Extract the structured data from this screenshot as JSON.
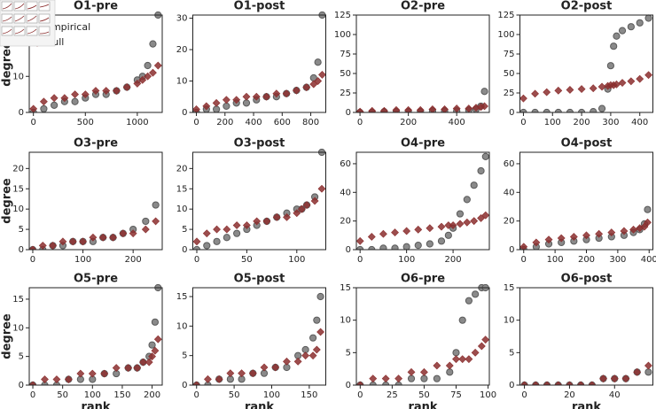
{
  "chart_data": [
    {
      "type": "scatter",
      "title": "O1-pre",
      "ylabel": "degree",
      "legend": "upper left",
      "x": [
        0,
        100,
        200,
        300,
        400,
        500,
        600,
        700,
        800,
        900,
        1000,
        1050,
        1100,
        1150,
        1200
      ],
      "series": [
        {
          "name": "Empirical",
          "color": "#5a5a5a",
          "values": [
            0,
            1,
            2,
            3,
            3,
            4,
            5,
            5,
            6,
            7,
            9,
            10,
            13,
            19,
            27
          ]
        },
        {
          "name": "Null",
          "color": "#8b2e2e",
          "values": [
            1,
            3,
            4,
            4,
            5,
            5,
            6,
            6,
            6,
            7,
            8,
            9,
            10,
            11,
            13
          ]
        }
      ],
      "xlim": [
        -40,
        1240
      ],
      "ylim": [
        0,
        27
      ],
      "xticks": [
        0,
        500,
        1000
      ],
      "yticks": [
        0,
        10,
        20
      ]
    },
    {
      "type": "scatter",
      "title": "O1-post",
      "x": [
        0,
        70,
        140,
        210,
        280,
        350,
        420,
        490,
        560,
        630,
        700,
        770,
        820,
        850,
        880
      ],
      "series": [
        {
          "name": "Empirical",
          "color": "#5a5a5a",
          "values": [
            0,
            1,
            1,
            2,
            3,
            3,
            4,
            5,
            5,
            6,
            7,
            8,
            11,
            16,
            31
          ]
        },
        {
          "name": "Null",
          "color": "#8b2e2e",
          "values": [
            1,
            2,
            3,
            4,
            4,
            5,
            5,
            5,
            6,
            6,
            7,
            8,
            9,
            10,
            12
          ]
        }
      ],
      "xlim": [
        -25,
        905
      ],
      "ylim": [
        0,
        31
      ],
      "xticks": [
        0,
        200,
        400,
        600,
        800
      ],
      "yticks": [
        0,
        10,
        20,
        30
      ]
    },
    {
      "type": "scatter",
      "title": "O2-pre",
      "x": [
        0,
        50,
        100,
        150,
        200,
        250,
        300,
        350,
        400,
        450,
        480,
        500,
        515
      ],
      "series": [
        {
          "name": "Empirical",
          "color": "#5a5a5a",
          "values": [
            0,
            0,
            1,
            1,
            1,
            1,
            2,
            2,
            2,
            3,
            4,
            8,
            27
          ]
        },
        {
          "name": "Null",
          "color": "#8b2e2e",
          "values": [
            1,
            2,
            2,
            3,
            3,
            3,
            4,
            4,
            5,
            5,
            6,
            7,
            8
          ]
        }
      ],
      "xlim": [
        -15,
        535
      ],
      "ylim": [
        0,
        125
      ],
      "xticks": [
        0,
        200,
        400
      ],
      "yticks": [
        0,
        25,
        50,
        75,
        100,
        125
      ]
    },
    {
      "type": "scatter",
      "title": "O2-post",
      "x": [
        0,
        40,
        80,
        120,
        160,
        200,
        240,
        270,
        290,
        300,
        310,
        320,
        340,
        370,
        400,
        430
      ],
      "series": [
        {
          "name": "Empirical",
          "color": "#5a5a5a",
          "values": [
            0,
            0,
            0,
            0,
            0,
            0,
            1,
            5,
            30,
            60,
            85,
            98,
            105,
            110,
            115,
            121
          ]
        },
        {
          "name": "Null",
          "color": "#8b2e2e",
          "values": [
            18,
            24,
            26,
            28,
            29,
            30,
            31,
            33,
            34,
            35,
            35,
            36,
            38,
            40,
            43,
            48
          ]
        }
      ],
      "xlim": [
        -12,
        445
      ],
      "ylim": [
        0,
        125
      ],
      "xticks": [
        0,
        100,
        200,
        300,
        400
      ],
      "yticks": [
        0,
        25,
        50,
        75,
        100,
        125
      ]
    },
    {
      "type": "scatter",
      "title": "O3-pre",
      "ylabel": "degree",
      "x": [
        0,
        20,
        40,
        60,
        80,
        100,
        120,
        140,
        160,
        180,
        200,
        225,
        245
      ],
      "series": [
        {
          "name": "Empirical",
          "color": "#5a5a5a",
          "values": [
            0,
            0,
            1,
            1,
            2,
            2,
            2,
            3,
            3,
            4,
            5,
            7,
            11
          ]
        },
        {
          "name": "Null",
          "color": "#8b2e2e",
          "values": [
            0,
            1,
            1,
            2,
            2,
            2,
            3,
            3,
            3,
            4,
            4,
            5,
            7
          ]
        }
      ],
      "xlim": [
        -7,
        258
      ],
      "ylim": [
        0,
        24
      ],
      "xticks": [
        0,
        100,
        200
      ],
      "yticks": [
        0,
        5,
        10,
        15,
        20
      ]
    },
    {
      "type": "scatter",
      "title": "O3-post",
      "x": [
        0,
        10,
        20,
        30,
        40,
        50,
        60,
        70,
        80,
        90,
        100,
        105,
        110,
        118,
        125
      ],
      "series": [
        {
          "name": "Empirical",
          "color": "#5a5a5a",
          "values": [
            0,
            1,
            2,
            3,
            4,
            5,
            6,
            7,
            8,
            9,
            10,
            10,
            11,
            13,
            24
          ]
        },
        {
          "name": "Null",
          "color": "#8b2e2e",
          "values": [
            2,
            4,
            5,
            5,
            6,
            6,
            7,
            7,
            8,
            8,
            9,
            10,
            11,
            12,
            15
          ]
        }
      ],
      "xlim": [
        -4,
        129
      ],
      "ylim": [
        0,
        24
      ],
      "xticks": [
        0,
        50,
        100
      ],
      "yticks": [
        0,
        5,
        10,
        15,
        20
      ]
    },
    {
      "type": "scatter",
      "title": "O4-pre",
      "x": [
        0,
        25,
        50,
        75,
        100,
        125,
        150,
        175,
        190,
        200,
        215,
        230,
        245,
        260,
        270
      ],
      "series": [
        {
          "name": "Empirical",
          "color": "#5a5a5a",
          "values": [
            0,
            0,
            1,
            1,
            2,
            3,
            4,
            6,
            10,
            15,
            25,
            35,
            45,
            55,
            65
          ]
        },
        {
          "name": "Null",
          "color": "#8b2e2e",
          "values": [
            6,
            9,
            11,
            12,
            13,
            14,
            15,
            16,
            17,
            17,
            18,
            19,
            20,
            22,
            24
          ]
        }
      ],
      "xlim": [
        -8,
        278
      ],
      "ylim": [
        0,
        68
      ],
      "xticks": [
        0,
        100,
        200
      ],
      "yticks": [
        0,
        20,
        40,
        60
      ]
    },
    {
      "type": "scatter",
      "title": "O4-post",
      "x": [
        0,
        40,
        80,
        120,
        160,
        200,
        240,
        280,
        320,
        350,
        370,
        385,
        395
      ],
      "series": [
        {
          "name": "Empirical",
          "color": "#5a5a5a",
          "values": [
            0,
            2,
            4,
            5,
            6,
            7,
            8,
            9,
            10,
            12,
            14,
            18,
            28
          ]
        },
        {
          "name": "Null",
          "color": "#8b2e2e",
          "values": [
            2,
            5,
            7,
            8,
            9,
            10,
            11,
            12,
            13,
            14,
            15,
            16,
            19
          ]
        }
      ],
      "xlim": [
        -12,
        412
      ],
      "ylim": [
        0,
        68
      ],
      "xticks": [
        0,
        100,
        200,
        300,
        400
      ],
      "yticks": [
        0,
        20,
        40,
        60
      ]
    },
    {
      "type": "scatter",
      "title": "O5-pre",
      "xlabel": "rank",
      "ylabel": "degree",
      "x": [
        0,
        20,
        40,
        60,
        80,
        100,
        120,
        140,
        160,
        175,
        185,
        195,
        200,
        205,
        210
      ],
      "series": [
        {
          "name": "Empirical",
          "color": "#5a5a5a",
          "values": [
            0,
            0,
            0,
            1,
            1,
            1,
            2,
            2,
            3,
            3,
            4,
            5,
            7,
            11,
            17
          ]
        },
        {
          "name": "Null",
          "color": "#8b2e2e",
          "values": [
            0,
            1,
            1,
            1,
            2,
            2,
            2,
            3,
            3,
            3,
            4,
            4,
            5,
            6,
            8
          ]
        }
      ],
      "xlim": [
        -6,
        217
      ],
      "ylim": [
        0,
        17
      ],
      "xticks": [
        0,
        50,
        100,
        150,
        200
      ],
      "yticks": [
        0,
        5,
        10,
        15
      ]
    },
    {
      "type": "scatter",
      "title": "O5-post",
      "xlabel": "rank",
      "x": [
        0,
        15,
        30,
        45,
        60,
        75,
        90,
        105,
        120,
        135,
        145,
        155,
        160,
        165
      ],
      "series": [
        {
          "name": "Empirical",
          "color": "#5a5a5a",
          "values": [
            0,
            0,
            1,
            1,
            1,
            2,
            2,
            3,
            3,
            5,
            6,
            8,
            11,
            15
          ]
        },
        {
          "name": "Null",
          "color": "#8b2e2e",
          "values": [
            0,
            1,
            1,
            2,
            2,
            2,
            3,
            3,
            4,
            4,
            5,
            5,
            6,
            9
          ]
        }
      ],
      "xlim": [
        -5,
        172
      ],
      "ylim": [
        0,
        16.5
      ],
      "xticks": [
        0,
        50,
        100,
        150
      ],
      "yticks": [
        0,
        5,
        10,
        15
      ]
    },
    {
      "type": "scatter",
      "title": "O6-pre",
      "xlabel": "rank",
      "x": [
        0,
        10,
        20,
        30,
        40,
        50,
        60,
        70,
        75,
        80,
        85,
        90,
        95,
        98
      ],
      "series": [
        {
          "name": "Empirical",
          "color": "#5a5a5a",
          "values": [
            0,
            0,
            0,
            0,
            1,
            1,
            1,
            2,
            5,
            10,
            13,
            14,
            15,
            15
          ]
        },
        {
          "name": "Null",
          "color": "#8b2e2e",
          "values": [
            0,
            1,
            1,
            1,
            2,
            2,
            3,
            3,
            4,
            4,
            4,
            5,
            6,
            7
          ]
        }
      ],
      "xlim": [
        -3,
        101
      ],
      "ylim": [
        0,
        15
      ],
      "xticks": [
        0,
        25,
        50,
        75,
        100
      ],
      "yticks": [
        0,
        5,
        10,
        15
      ]
    },
    {
      "type": "scatter",
      "title": "O6-post",
      "xlabel": "rank",
      "x": [
        0,
        5,
        10,
        15,
        20,
        25,
        30,
        35,
        40,
        45,
        50,
        55
      ],
      "series": [
        {
          "name": "Empirical",
          "color": "#5a5a5a",
          "values": [
            0,
            0,
            0,
            0,
            0,
            0,
            0,
            1,
            1,
            1,
            2,
            2
          ]
        },
        {
          "name": "Null",
          "color": "#8b2e2e",
          "values": [
            0,
            0,
            0,
            0,
            0,
            0,
            0,
            1,
            1,
            1,
            2,
            3
          ]
        }
      ],
      "xlim": [
        -2,
        57
      ],
      "ylim": [
        0,
        15
      ],
      "xticks": [
        0,
        20,
        40
      ],
      "yticks": [
        0,
        5,
        10,
        15
      ]
    }
  ]
}
